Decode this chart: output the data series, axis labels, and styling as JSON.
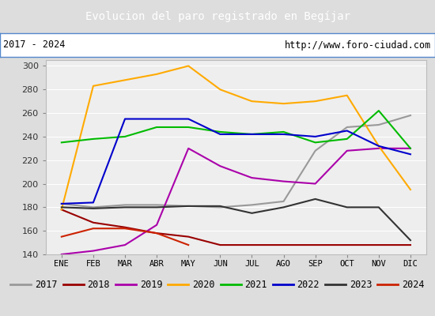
{
  "title": "Evolucion del paro registrado en Begíjar",
  "subtitle_left": "2017 - 2024",
  "subtitle_right": "http://www.foro-ciudad.com",
  "months": [
    "ENE",
    "FEB",
    "MAR",
    "ABR",
    "MAY",
    "JUN",
    "JUL",
    "AGO",
    "SEP",
    "OCT",
    "NOV",
    "DIC"
  ],
  "series": {
    "2017": {
      "color": "#999999",
      "data": [
        183,
        180,
        182,
        182,
        181,
        180,
        182,
        185,
        228,
        248,
        250,
        258
      ]
    },
    "2018": {
      "color": "#990000",
      "data": [
        178,
        167,
        163,
        158,
        155,
        148,
        148,
        148,
        148,
        148,
        148,
        148
      ]
    },
    "2019": {
      "color": "#aa00aa",
      "data": [
        140,
        143,
        148,
        165,
        230,
        215,
        205,
        202,
        200,
        228,
        230,
        230
      ]
    },
    "2020": {
      "color": "#ffaa00",
      "data": [
        178,
        283,
        288,
        293,
        300,
        280,
        270,
        268,
        270,
        275,
        232,
        195
      ]
    },
    "2021": {
      "color": "#00bb00",
      "data": [
        235,
        238,
        240,
        248,
        248,
        244,
        242,
        244,
        235,
        238,
        262,
        230
      ]
    },
    "2022": {
      "color": "#0000cc",
      "data": [
        183,
        184,
        255,
        255,
        255,
        242,
        242,
        242,
        240,
        245,
        232,
        225
      ]
    },
    "2023": {
      "color": "#333333",
      "data": [
        180,
        179,
        180,
        180,
        181,
        181,
        175,
        180,
        187,
        180,
        180,
        152
      ]
    },
    "2024": {
      "color": "#cc2200",
      "data": [
        155,
        162,
        162,
        158,
        148,
        null,
        null,
        null,
        null,
        null,
        null,
        null
      ]
    }
  },
  "ylim": [
    140,
    305
  ],
  "yticks": [
    140,
    160,
    180,
    200,
    220,
    240,
    260,
    280,
    300
  ],
  "title_bg": "#5588cc",
  "title_color": "#ffffff",
  "subtitle_bg": "#ffffff",
  "plot_bg": "#eeeeee",
  "outer_bg": "#dddddd",
  "border_color": "#5588cc"
}
